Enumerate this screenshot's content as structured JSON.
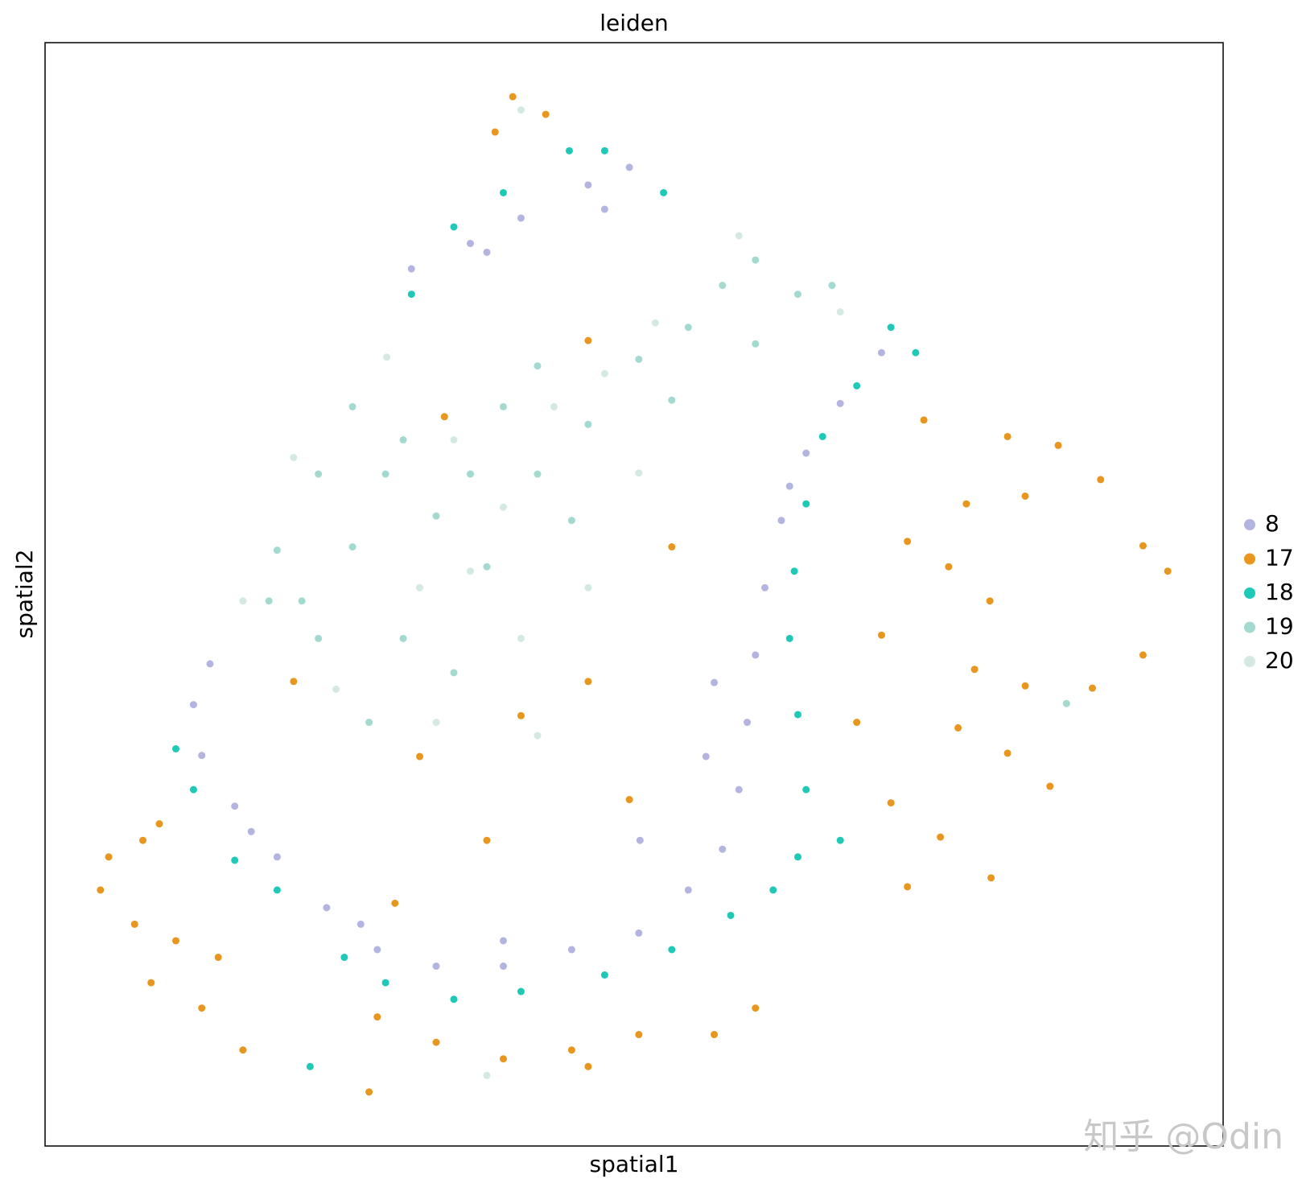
{
  "chart_data": {
    "type": "scatter",
    "title": "leiden",
    "x_label": "spatial1",
    "y_label": "spatial2",
    "xlim": [
      0,
      100
    ],
    "ylim": [
      0,
      100
    ],
    "grid": false,
    "legend": "right",
    "series": [
      {
        "name": "8",
        "color": "#b4b4e1",
        "x": [
          31.1,
          36.1,
          40.4,
          46.1,
          49.6,
          71.0,
          67.5,
          64.6,
          62.5,
          61.1,
          60.3,
          59.6,
          58.9,
          57.5,
          54.6,
          50.4,
          44.7,
          38.9,
          33.2,
          28.2,
          23.9,
          19.7,
          16.1,
          13.3,
          12.6,
          14.0,
          56.8,
          56.1,
          50.5,
          38.9,
          26.8,
          17.5,
          63.2,
          37.5,
          47.5
        ],
        "y": [
          79.5,
          81.8,
          84.1,
          87.1,
          88.7,
          71.9,
          67.3,
          62.8,
          56.7,
          50.6,
          44.5,
          38.4,
          32.3,
          26.9,
          23.2,
          19.3,
          17.8,
          16.3,
          16.3,
          17.8,
          21.6,
          26.2,
          30.8,
          35.4,
          40.0,
          43.7,
          42.0,
          35.3,
          27.7,
          18.6,
          20.1,
          28.5,
          59.8,
          81.0,
          84.9
        ]
      },
      {
        "name": "17",
        "color": "#e8961e",
        "x": [
          39.7,
          38.2,
          42.5,
          74.6,
          81.7,
          86.0,
          89.6,
          78.2,
          83.2,
          73.2,
          76.7,
          80.2,
          71.0,
          78.9,
          83.2,
          77.5,
          81.7,
          85.3,
          71.8,
          76.0,
          73.2,
          80.3,
          68.9,
          93.2,
          95.3,
          88.9,
          93.2,
          5.4,
          8.3,
          9.7,
          4.7,
          7.6,
          11.1,
          9.0,
          13.3,
          16.8,
          14.7,
          28.2,
          33.2,
          38.9,
          44.7,
          50.4,
          56.8,
          60.3,
          27.5,
          46.1,
          46.1,
          33.9,
          40.4,
          31.8,
          46.1,
          37.5,
          49.6,
          21.1,
          29.7,
          53.2
        ],
        "y": [
          95.1,
          91.9,
          93.5,
          65.8,
          64.3,
          63.5,
          60.4,
          58.2,
          58.9,
          54.8,
          52.5,
          49.4,
          46.3,
          43.2,
          41.7,
          37.9,
          35.6,
          32.6,
          31.1,
          28.0,
          23.5,
          24.3,
          38.4,
          54.4,
          52.1,
          41.5,
          44.5,
          26.2,
          27.7,
          29.2,
          23.2,
          20.1,
          18.6,
          14.8,
          12.5,
          8.7,
          17.1,
          11.7,
          9.4,
          7.9,
          8.7,
          10.1,
          10.1,
          12.5,
          4.9,
          7.2,
          73.0,
          66.1,
          39.0,
          35.3,
          42.1,
          27.7,
          31.4,
          42.1,
          22.0,
          54.3
        ]
      },
      {
        "name": "18",
        "color": "#1fc9b8",
        "x": [
          34.7,
          38.9,
          44.5,
          47.5,
          52.5,
          31.1,
          71.8,
          73.9,
          68.9,
          66.0,
          64.6,
          63.6,
          63.2,
          63.9,
          64.6,
          63.9,
          61.8,
          58.2,
          53.2,
          47.5,
          40.4,
          34.7,
          28.9,
          25.4,
          19.7,
          16.1,
          12.6,
          11.1,
          22.5,
          67.5
        ],
        "y": [
          83.3,
          86.4,
          90.2,
          90.2,
          86.4,
          77.2,
          74.2,
          71.9,
          68.9,
          64.3,
          58.2,
          52.1,
          46.0,
          39.1,
          32.3,
          26.2,
          23.2,
          20.9,
          17.8,
          15.5,
          14.0,
          13.3,
          14.8,
          17.1,
          23.2,
          25.9,
          32.3,
          36.0,
          7.2,
          27.7
        ]
      },
      {
        "name": "19",
        "color": "#a2dad0",
        "x": [
          19.7,
          23.2,
          26.1,
          30.4,
          21.8,
          26.1,
          36.1,
          38.9,
          41.8,
          46.1,
          50.4,
          54.6,
          57.5,
          60.3,
          63.9,
          66.8,
          33.2,
          37.5,
          30.4,
          34.7,
          41.8,
          28.9,
          23.2,
          44.7,
          53.2,
          60.3,
          19.0,
          27.5,
          86.7
        ],
        "y": [
          54.0,
          60.9,
          67.0,
          64.0,
          49.4,
          54.3,
          60.9,
          67.0,
          70.7,
          65.4,
          71.3,
          74.2,
          78.0,
          80.3,
          77.2,
          78.0,
          57.1,
          52.5,
          46.0,
          42.9,
          60.9,
          60.9,
          46.0,
          56.7,
          67.6,
          72.7,
          49.4,
          38.4,
          40.1
        ]
      },
      {
        "name": "20",
        "color": "#d4eae1",
        "x": [
          21.1,
          29.0,
          34.7,
          38.9,
          43.2,
          47.5,
          51.8,
          58.9,
          36.1,
          31.8,
          40.4,
          46.1,
          24.7,
          33.2,
          41.8,
          16.8,
          40.4,
          67.5,
          50.4,
          37.5
        ],
        "y": [
          62.4,
          71.5,
          64.0,
          57.9,
          67.0,
          70.0,
          74.6,
          82.5,
          52.1,
          50.6,
          46.0,
          50.6,
          41.4,
          38.4,
          37.2,
          49.4,
          93.9,
          75.6,
          61.0,
          6.4
        ]
      }
    ]
  },
  "watermark": "知乎 @Odin"
}
